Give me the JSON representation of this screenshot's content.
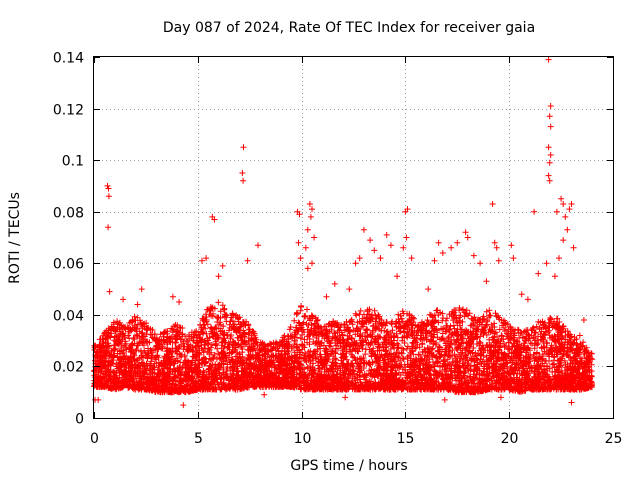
{
  "chart_data": {
    "type": "scatter",
    "title": "Day 087 of 2024, Rate Of TEC Index for receiver gaia",
    "xlabel": "GPS time / hours",
    "ylabel": "ROTI / TECUs",
    "xlim": [
      0,
      25
    ],
    "ylim": [
      0,
      0.14
    ],
    "x_ticks": [
      0,
      5,
      10,
      15,
      20,
      25
    ],
    "x_tick_labels": [
      "0",
      "5",
      "10",
      "15",
      "20",
      "25"
    ],
    "y_ticks": [
      0,
      0.02,
      0.04,
      0.06,
      0.08,
      0.1,
      0.12,
      0.14
    ],
    "y_tick_labels": [
      "0",
      "0.02",
      "0.04",
      "0.06",
      "0.08",
      "0.1",
      "0.12",
      "0.14"
    ],
    "grid": true,
    "marker": "+",
    "marker_color": "#ff0000",
    "background_envelope": [
      [
        0.0,
        0.012,
        0.028
      ],
      [
        0.5,
        0.012,
        0.033
      ],
      [
        1.0,
        0.011,
        0.038
      ],
      [
        1.5,
        0.012,
        0.036
      ],
      [
        2.0,
        0.011,
        0.04
      ],
      [
        2.5,
        0.011,
        0.038
      ],
      [
        3.0,
        0.01,
        0.032
      ],
      [
        3.5,
        0.01,
        0.034
      ],
      [
        4.0,
        0.01,
        0.037
      ],
      [
        4.5,
        0.01,
        0.033
      ],
      [
        5.0,
        0.011,
        0.034
      ],
      [
        5.5,
        0.011,
        0.045
      ],
      [
        6.0,
        0.011,
        0.045
      ],
      [
        6.5,
        0.011,
        0.042
      ],
      [
        7.0,
        0.011,
        0.04
      ],
      [
        7.5,
        0.012,
        0.036
      ],
      [
        8.0,
        0.012,
        0.03
      ],
      [
        8.5,
        0.012,
        0.029
      ],
      [
        9.0,
        0.012,
        0.03
      ],
      [
        9.5,
        0.012,
        0.036
      ],
      [
        10.0,
        0.011,
        0.045
      ],
      [
        10.5,
        0.011,
        0.043
      ],
      [
        11.0,
        0.011,
        0.035
      ],
      [
        11.5,
        0.011,
        0.038
      ],
      [
        12.0,
        0.011,
        0.036
      ],
      [
        12.5,
        0.011,
        0.04
      ],
      [
        13.0,
        0.011,
        0.043
      ],
      [
        13.5,
        0.011,
        0.042
      ],
      [
        14.0,
        0.011,
        0.037
      ],
      [
        14.5,
        0.011,
        0.04
      ],
      [
        15.0,
        0.011,
        0.042
      ],
      [
        15.5,
        0.011,
        0.038
      ],
      [
        16.0,
        0.011,
        0.04
      ],
      [
        16.5,
        0.011,
        0.042
      ],
      [
        17.0,
        0.011,
        0.04
      ],
      [
        17.5,
        0.01,
        0.043
      ],
      [
        18.0,
        0.01,
        0.042
      ],
      [
        18.5,
        0.01,
        0.04
      ],
      [
        19.0,
        0.011,
        0.042
      ],
      [
        19.5,
        0.011,
        0.04
      ],
      [
        20.0,
        0.011,
        0.036
      ],
      [
        20.5,
        0.01,
        0.034
      ],
      [
        21.0,
        0.011,
        0.035
      ],
      [
        21.5,
        0.011,
        0.038
      ],
      [
        22.0,
        0.011,
        0.04
      ],
      [
        22.5,
        0.011,
        0.038
      ],
      [
        23.0,
        0.011,
        0.032
      ],
      [
        23.5,
        0.011,
        0.03
      ],
      [
        24.0,
        0.012,
        0.025
      ]
    ],
    "outliers": [
      {
        "x": 0.65,
        "y": 0.09
      },
      {
        "x": 0.7,
        "y": 0.089
      },
      {
        "x": 0.72,
        "y": 0.086
      },
      {
        "x": 0.68,
        "y": 0.074
      },
      {
        "x": 0.75,
        "y": 0.049
      },
      {
        "x": 0.05,
        "y": 0.007
      },
      {
        "x": 0.2,
        "y": 0.007
      },
      {
        "x": 4.3,
        "y": 0.005
      },
      {
        "x": 5.7,
        "y": 0.078
      },
      {
        "x": 5.8,
        "y": 0.077
      },
      {
        "x": 5.2,
        "y": 0.061
      },
      {
        "x": 5.4,
        "y": 0.062
      },
      {
        "x": 6.2,
        "y": 0.059
      },
      {
        "x": 7.2,
        "y": 0.105
      },
      {
        "x": 7.15,
        "y": 0.095
      },
      {
        "x": 7.18,
        "y": 0.092
      },
      {
        "x": 7.4,
        "y": 0.061
      },
      {
        "x": 7.9,
        "y": 0.067
      },
      {
        "x": 6.0,
        "y": 0.055
      },
      {
        "x": 9.8,
        "y": 0.08
      },
      {
        "x": 9.9,
        "y": 0.079
      },
      {
        "x": 9.85,
        "y": 0.068
      },
      {
        "x": 9.95,
        "y": 0.062
      },
      {
        "x": 10.4,
        "y": 0.083
      },
      {
        "x": 10.5,
        "y": 0.081
      },
      {
        "x": 10.45,
        "y": 0.078
      },
      {
        "x": 10.3,
        "y": 0.073
      },
      {
        "x": 10.6,
        "y": 0.07
      },
      {
        "x": 10.2,
        "y": 0.066
      },
      {
        "x": 10.5,
        "y": 0.06
      },
      {
        "x": 10.3,
        "y": 0.058
      },
      {
        "x": 12.6,
        "y": 0.06
      },
      {
        "x": 12.8,
        "y": 0.062
      },
      {
        "x": 13.0,
        "y": 0.073
      },
      {
        "x": 13.3,
        "y": 0.069
      },
      {
        "x": 13.5,
        "y": 0.065
      },
      {
        "x": 13.8,
        "y": 0.062
      },
      {
        "x": 14.1,
        "y": 0.071
      },
      {
        "x": 14.3,
        "y": 0.067
      },
      {
        "x": 15.0,
        "y": 0.08
      },
      {
        "x": 15.1,
        "y": 0.081
      },
      {
        "x": 15.05,
        "y": 0.07
      },
      {
        "x": 14.9,
        "y": 0.066
      },
      {
        "x": 15.3,
        "y": 0.062
      },
      {
        "x": 16.4,
        "y": 0.061
      },
      {
        "x": 16.6,
        "y": 0.068
      },
      {
        "x": 16.8,
        "y": 0.064
      },
      {
        "x": 17.2,
        "y": 0.066
      },
      {
        "x": 17.5,
        "y": 0.068
      },
      {
        "x": 17.9,
        "y": 0.072
      },
      {
        "x": 18.0,
        "y": 0.07
      },
      {
        "x": 18.3,
        "y": 0.063
      },
      {
        "x": 18.6,
        "y": 0.06
      },
      {
        "x": 19.2,
        "y": 0.083
      },
      {
        "x": 19.3,
        "y": 0.068
      },
      {
        "x": 19.4,
        "y": 0.066
      },
      {
        "x": 19.5,
        "y": 0.061
      },
      {
        "x": 20.1,
        "y": 0.067
      },
      {
        "x": 20.2,
        "y": 0.062
      },
      {
        "x": 21.2,
        "y": 0.08
      },
      {
        "x": 21.4,
        "y": 0.056
      },
      {
        "x": 21.9,
        "y": 0.139
      },
      {
        "x": 22.0,
        "y": 0.121
      },
      {
        "x": 21.95,
        "y": 0.117
      },
      {
        "x": 22.0,
        "y": 0.113
      },
      {
        "x": 21.9,
        "y": 0.105
      },
      {
        "x": 22.0,
        "y": 0.102
      },
      {
        "x": 21.95,
        "y": 0.099
      },
      {
        "x": 21.9,
        "y": 0.094
      },
      {
        "x": 21.95,
        "y": 0.092
      },
      {
        "x": 22.3,
        "y": 0.08
      },
      {
        "x": 22.5,
        "y": 0.085
      },
      {
        "x": 22.6,
        "y": 0.083
      },
      {
        "x": 22.7,
        "y": 0.078
      },
      {
        "x": 22.9,
        "y": 0.081
      },
      {
        "x": 23.0,
        "y": 0.083
      },
      {
        "x": 22.8,
        "y": 0.073
      },
      {
        "x": 22.6,
        "y": 0.069
      },
      {
        "x": 23.1,
        "y": 0.066
      },
      {
        "x": 22.4,
        "y": 0.062
      },
      {
        "x": 21.8,
        "y": 0.06
      },
      {
        "x": 22.2,
        "y": 0.055
      },
      {
        "x": 23.4,
        "y": 0.032
      },
      {
        "x": 23.0,
        "y": 0.006
      },
      {
        "x": 19.6,
        "y": 0.008
      },
      {
        "x": 8.2,
        "y": 0.009
      },
      {
        "x": 12.1,
        "y": 0.008
      },
      {
        "x": 16.9,
        "y": 0.007
      },
      {
        "x": 2.1,
        "y": 0.044
      },
      {
        "x": 2.3,
        "y": 0.05
      },
      {
        "x": 3.8,
        "y": 0.047
      },
      {
        "x": 4.1,
        "y": 0.045
      },
      {
        "x": 1.4,
        "y": 0.046
      },
      {
        "x": 11.2,
        "y": 0.047
      },
      {
        "x": 11.6,
        "y": 0.052
      },
      {
        "x": 12.3,
        "y": 0.05
      },
      {
        "x": 14.6,
        "y": 0.055
      },
      {
        "x": 16.1,
        "y": 0.05
      },
      {
        "x": 18.9,
        "y": 0.053
      },
      {
        "x": 20.6,
        "y": 0.048
      },
      {
        "x": 20.9,
        "y": 0.046
      },
      {
        "x": 23.6,
        "y": 0.038
      }
    ]
  }
}
